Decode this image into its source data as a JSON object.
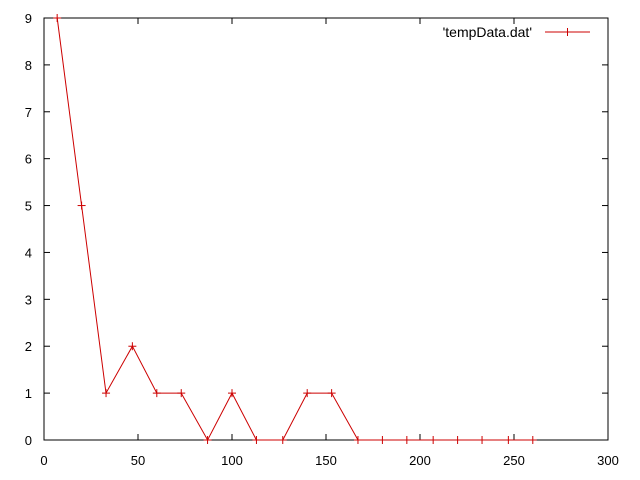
{
  "chart_data": {
    "type": "line",
    "title": "",
    "xlabel": "",
    "ylabel": "",
    "xlim": [
      0,
      300
    ],
    "ylim": [
      0,
      9
    ],
    "xticks": [
      0,
      50,
      100,
      150,
      200,
      250,
      300
    ],
    "yticks": [
      0,
      1,
      2,
      3,
      4,
      5,
      6,
      7,
      8,
      9
    ],
    "grid": false,
    "legend": "top-right",
    "series": [
      {
        "name": "'tempData.dat'",
        "color": "#cc0000",
        "marker": "plus",
        "x": [
          7,
          20,
          33,
          47,
          60,
          73,
          87,
          100,
          113,
          127,
          140,
          153,
          167,
          180,
          193,
          207,
          220,
          233,
          247,
          260
        ],
        "y": [
          9,
          5,
          1,
          2,
          1,
          1,
          0,
          1,
          0,
          0,
          1,
          1,
          0,
          0,
          0,
          0,
          0,
          0,
          0,
          0
        ]
      }
    ]
  }
}
